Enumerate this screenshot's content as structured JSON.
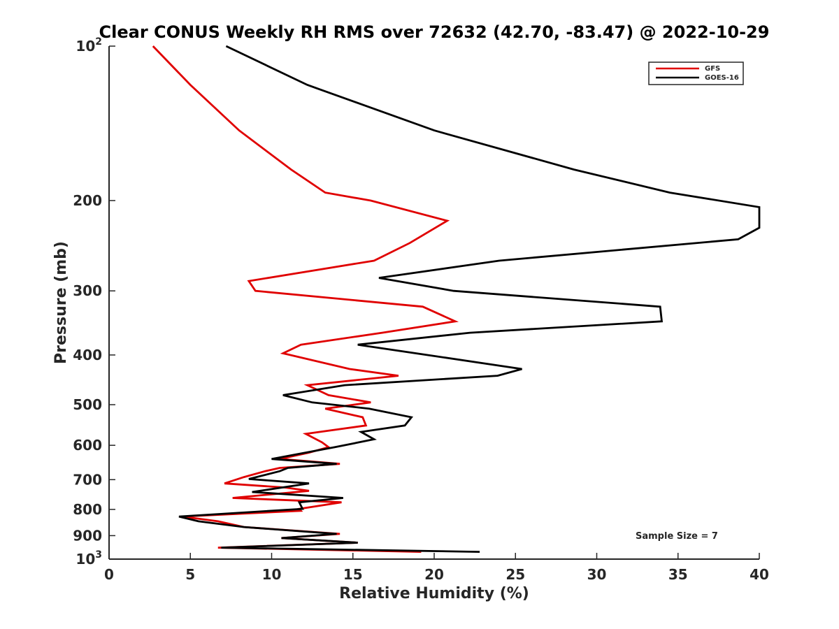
{
  "chart_data": {
    "type": "line",
    "title": "Clear CONUS Weekly RH RMS over 72632 (42.70, -83.47) @ 2022-10-29",
    "xlabel": "Relative Humidity (%)",
    "ylabel": "Pressure (mb)",
    "xlim": [
      0,
      40
    ],
    "ylim": [
      100,
      1000
    ],
    "y_scale": "log",
    "y_reversed": true,
    "grid": false,
    "legend_position": "top-right",
    "x_ticks": [
      "0",
      "5",
      "10",
      "15",
      "20",
      "25",
      "30",
      "35",
      "40"
    ],
    "x_tick_values": [
      0,
      5,
      10,
      15,
      20,
      25,
      30,
      35,
      40
    ],
    "y_ticks": [
      {
        "value": 100,
        "base": "10",
        "exp": "2"
      },
      {
        "value": 200,
        "label": "200"
      },
      {
        "value": 300,
        "label": "300"
      },
      {
        "value": 400,
        "label": "400"
      },
      {
        "value": 500,
        "label": "500"
      },
      {
        "value": 600,
        "label": "600"
      },
      {
        "value": 700,
        "label": "700"
      },
      {
        "value": 800,
        "label": "800"
      },
      {
        "value": 900,
        "label": "900"
      },
      {
        "value": 1000,
        "base": "10",
        "exp": "3"
      }
    ],
    "annotation": "Sample Size = 7",
    "series": [
      {
        "name": "GFS",
        "color": "#e00000",
        "points": [
          [
            2.7,
            100
          ],
          [
            5.0,
            119
          ],
          [
            8.0,
            146
          ],
          [
            11.2,
            174
          ],
          [
            13.3,
            193
          ],
          [
            16.1,
            200
          ],
          [
            20.8,
            219
          ],
          [
            18.5,
            242
          ],
          [
            16.3,
            262
          ],
          [
            8.6,
            287
          ],
          [
            9.0,
            300
          ],
          [
            19.3,
            322
          ],
          [
            21.3,
            344
          ],
          [
            16.8,
            362
          ],
          [
            11.8,
            382
          ],
          [
            10.7,
            397
          ],
          [
            14.8,
            426
          ],
          [
            17.8,
            439
          ],
          [
            12.2,
            458
          ],
          [
            13.5,
            479
          ],
          [
            16.1,
            495
          ],
          [
            13.3,
            509
          ],
          [
            15.6,
            529
          ],
          [
            15.8,
            549
          ],
          [
            12.1,
            570
          ],
          [
            13.1,
            592
          ],
          [
            13.5,
            605
          ],
          [
            12.3,
            620
          ],
          [
            10.5,
            638
          ],
          [
            14.2,
            652
          ],
          [
            10.5,
            664
          ],
          [
            9.6,
            674
          ],
          [
            8.3,
            692
          ],
          [
            7.1,
            712
          ],
          [
            10.8,
            725
          ],
          [
            12.3,
            736
          ],
          [
            7.6,
            760
          ],
          [
            14.3,
            775
          ],
          [
            11.7,
            798
          ],
          [
            11.8,
            805
          ],
          [
            4.5,
            826
          ],
          [
            6.7,
            844
          ],
          [
            8.3,
            866
          ],
          [
            14.2,
            893
          ],
          [
            10.6,
            910
          ],
          [
            15.3,
            929
          ],
          [
            6.7,
            950
          ],
          [
            19.2,
            968
          ]
        ]
      },
      {
        "name": "GOES-16",
        "color": "#000000",
        "points": [
          [
            7.2,
            100
          ],
          [
            12.2,
            119
          ],
          [
            20.0,
            146
          ],
          [
            28.6,
            174
          ],
          [
            34.5,
            193
          ],
          [
            40.0,
            206
          ],
          [
            40.0,
            226
          ],
          [
            38.7,
            238
          ],
          [
            24.0,
            262
          ],
          [
            16.6,
            283
          ],
          [
            21.2,
            300
          ],
          [
            33.9,
            322
          ],
          [
            34.0,
            344
          ],
          [
            22.2,
            362
          ],
          [
            15.3,
            382
          ],
          [
            25.4,
            426
          ],
          [
            23.9,
            439
          ],
          [
            14.5,
            458
          ],
          [
            10.7,
            479
          ],
          [
            12.5,
            495
          ],
          [
            16.0,
            509
          ],
          [
            18.6,
            529
          ],
          [
            18.2,
            549
          ],
          [
            15.5,
            565
          ],
          [
            16.3,
            584
          ],
          [
            13.9,
            605
          ],
          [
            10.0,
            638
          ],
          [
            14.0,
            652
          ],
          [
            11.0,
            664
          ],
          [
            10.5,
            674
          ],
          [
            8.6,
            698
          ],
          [
            12.3,
            712
          ],
          [
            8.8,
            740
          ],
          [
            14.4,
            760
          ],
          [
            11.7,
            775
          ],
          [
            11.9,
            798
          ],
          [
            4.3,
            826
          ],
          [
            5.5,
            844
          ],
          [
            8.3,
            866
          ],
          [
            14.0,
            893
          ],
          [
            10.6,
            910
          ],
          [
            15.3,
            929
          ],
          [
            6.9,
            950
          ],
          [
            22.8,
            968
          ]
        ]
      }
    ]
  }
}
